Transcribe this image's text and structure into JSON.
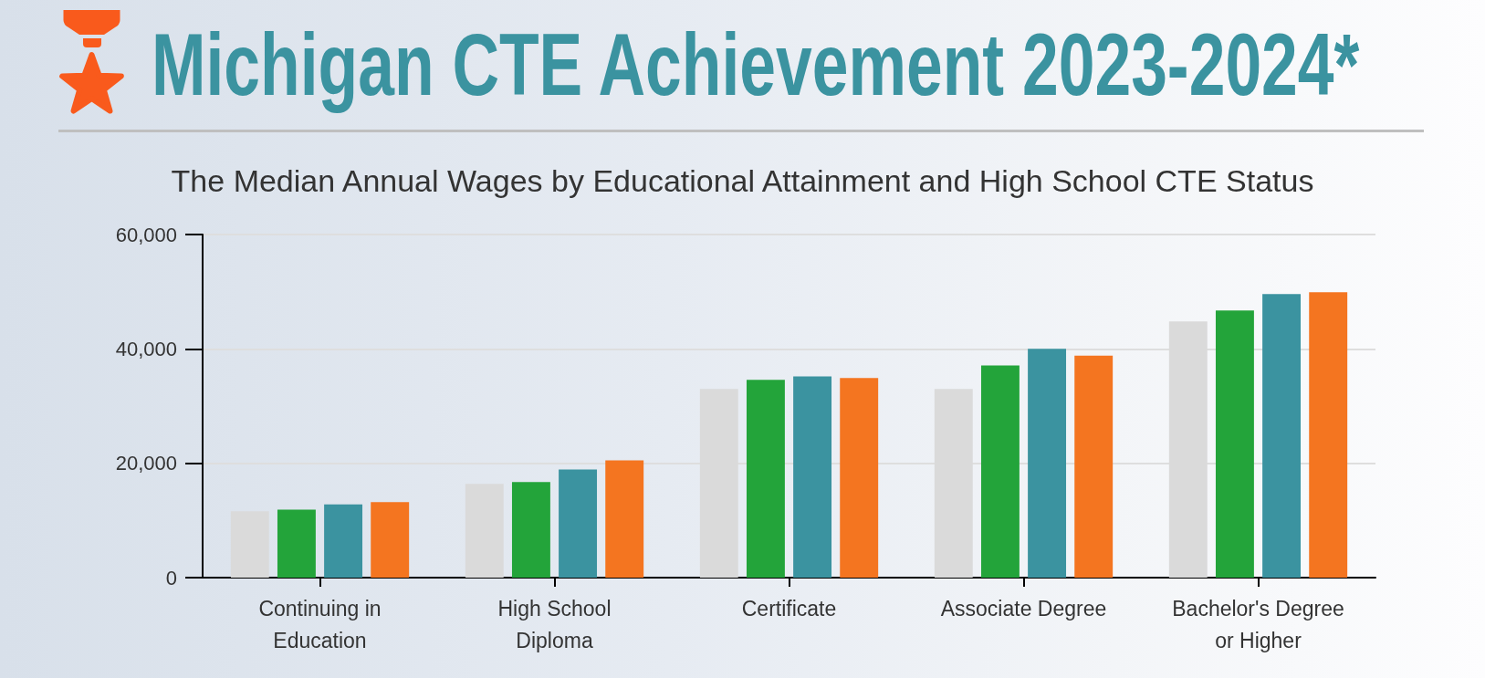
{
  "chart_data": {
    "type": "bar",
    "title": "Michigan CTE Achievement 2023-2024*",
    "subtitle": "The Median Annual Wages by Educational Attainment and High School CTE Status",
    "categories": [
      "Continuing in\nEducation",
      "High School\nDiploma",
      "Certificate",
      "Associate Degree",
      "Bachelor's Degree\nor Higher"
    ],
    "series": [
      {
        "color": "#dadada",
        "values": [
          11600,
          16400,
          33000,
          33000,
          44800
        ]
      },
      {
        "color": "#23a43a",
        "values": [
          11900,
          16700,
          34600,
          37100,
          46700
        ]
      },
      {
        "color": "#3b93a0",
        "values": [
          12800,
          18900,
          35200,
          40000,
          49600
        ]
      },
      {
        "color": "#f47520",
        "values": [
          13200,
          20500,
          34900,
          38800,
          49900
        ]
      }
    ],
    "ylim": [
      0,
      60000
    ],
    "yticks": [
      0,
      {
        "value": 20000,
        "label": "20,000"
      },
      {
        "value": 40000,
        "label": "40,000"
      },
      {
        "value": 60000,
        "label": "60,000"
      }
    ],
    "grid": "y"
  }
}
